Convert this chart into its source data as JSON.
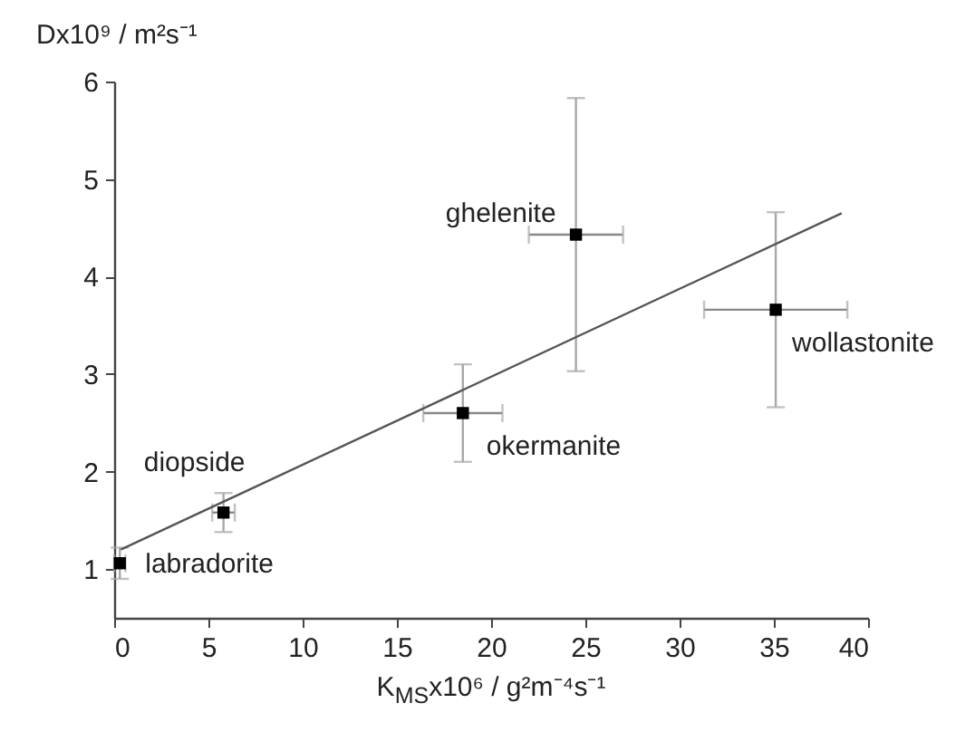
{
  "chart_data": {
    "type": "scatter",
    "xlabel": "K$_{MS}$x10⁶ / g²m⁻⁴s⁻¹",
    "ylabel": "Dx10⁹ / m²s⁻¹",
    "xlim": [
      0,
      40
    ],
    "ylim": [
      0.5,
      6
    ],
    "xticks": [
      0,
      5,
      10,
      15,
      20,
      25,
      30,
      35,
      40
    ],
    "yticks": [
      1,
      2,
      3,
      4,
      5,
      6
    ],
    "grid": false,
    "series": [
      {
        "color": "#000000",
        "marker": "square",
        "x": [
          0.3,
          5.8,
          18.5,
          24.5,
          35.1
        ],
        "values": [
          1.06,
          1.58,
          2.6,
          4.43,
          3.66
        ],
        "errors": [
          0.16,
          0.2,
          0.5,
          1.4,
          1.0
        ],
        "xerrors": [
          0.3,
          0.6,
          2.1,
          2.5,
          3.8
        ]
      },
      {
        "type": "line",
        "color": "#555555",
        "line_style": "solid",
        "x": [
          0.35,
          38.6
        ],
        "values": [
          1.2,
          4.65
        ]
      }
    ],
    "annotations": [
      {
        "text": "labradorite",
        "x": 0.3,
        "y": 1.06
      },
      {
        "text": "diopside",
        "x": 5.8,
        "y": 1.58
      },
      {
        "text": "okermanite",
        "x": 18.5,
        "y": 2.6
      },
      {
        "text": "ghelenite",
        "x": 24.5,
        "y": 4.43
      },
      {
        "text": "wollastonite",
        "x": 35.1,
        "y": 3.66
      }
    ]
  }
}
